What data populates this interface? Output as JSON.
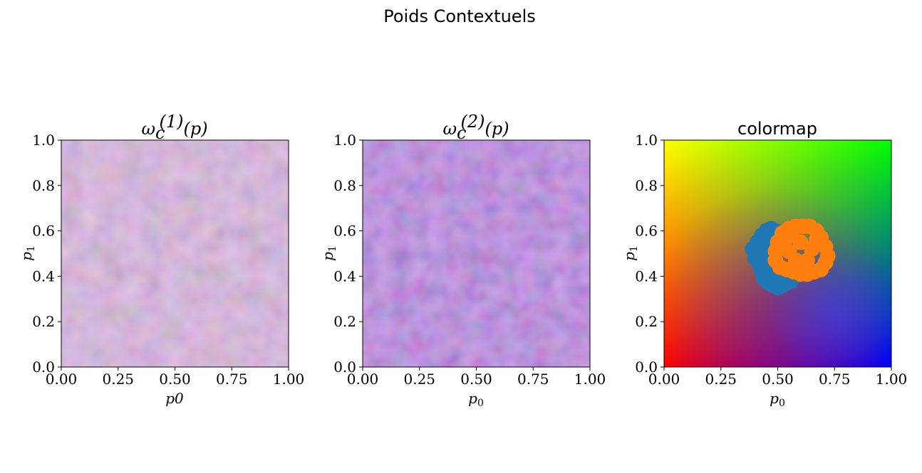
{
  "figure": {
    "suptitle": "Poids Contextuels"
  },
  "chart_data": [
    {
      "type": "heatmap",
      "title": "ω_c^(1)(p)",
      "title_parts": {
        "base": "ω",
        "sub": "c",
        "sup": "(1)",
        "arg": "(p)"
      },
      "xlabel": "p0",
      "ylabel": "p1",
      "xlim": [
        0.0,
        1.0
      ],
      "ylim": [
        0.0,
        1.0
      ],
      "xticks": [
        "0.00",
        "0.25",
        "0.50",
        "0.75",
        "1.00"
      ],
      "yticks": [
        "0.0",
        "0.2",
        "0.4",
        "0.6",
        "0.8",
        "1.0"
      ],
      "grid": false,
      "description_tint": [
        "#c4a8d8",
        "#d9a4b8",
        "#e8c9a0",
        "#b8d4b0",
        "#a8a8e0"
      ]
    },
    {
      "type": "heatmap",
      "title": "ω_c^(2)(p)",
      "title_parts": {
        "base": "ω",
        "sub": "c",
        "sup": "(2)",
        "arg": "(p)"
      },
      "xlabel": "p0",
      "ylabel": "p1",
      "xlim": [
        0.0,
        1.0
      ],
      "ylim": [
        0.0,
        1.0
      ],
      "xticks": [
        "0.00",
        "0.25",
        "0.50",
        "0.75",
        "1.00"
      ],
      "yticks": [
        "0.0",
        "0.2",
        "0.4",
        "0.6",
        "0.8",
        "1.0"
      ],
      "grid": false,
      "description_tint": [
        "#9a7ccf",
        "#b57ab8",
        "#d58aa0",
        "#c9a8dc",
        "#8c80d6"
      ]
    },
    {
      "type": "scatter",
      "title": "colormap",
      "xlabel": "p0",
      "ylabel": "p1",
      "xlim": [
        0.0,
        1.0
      ],
      "ylim": [
        0.0,
        1.0
      ],
      "xticks": [
        "0.00",
        "0.25",
        "0.50",
        "0.75",
        "1.00"
      ],
      "yticks": [
        "0.0",
        "0.2",
        "0.4",
        "0.6",
        "0.8",
        "1.0"
      ],
      "grid": false,
      "background_corners": {
        "bottom_left": "#ff0000",
        "top_left": "#ffff00",
        "top_right": "#00ff00",
        "bottom_right": "#0000ff",
        "center_low": "#7a1aa8"
      },
      "series": [
        {
          "color": "#1f77b4",
          "points": [
            [
              0.39,
              0.52
            ],
            [
              0.41,
              0.55
            ],
            [
              0.43,
              0.58
            ],
            [
              0.45,
              0.6
            ],
            [
              0.47,
              0.61
            ],
            [
              0.49,
              0.6
            ],
            [
              0.5,
              0.58
            ],
            [
              0.4,
              0.48
            ],
            [
              0.42,
              0.45
            ],
            [
              0.43,
              0.42
            ],
            [
              0.44,
              0.39
            ],
            [
              0.46,
              0.37
            ],
            [
              0.48,
              0.36
            ],
            [
              0.5,
              0.35
            ],
            [
              0.52,
              0.36
            ],
            [
              0.54,
              0.37
            ],
            [
              0.56,
              0.38
            ],
            [
              0.57,
              0.4
            ],
            [
              0.44,
              0.5
            ],
            [
              0.46,
              0.54
            ],
            [
              0.46,
              0.46
            ],
            [
              0.48,
              0.42
            ],
            [
              0.51,
              0.4
            ],
            [
              0.42,
              0.5
            ],
            [
              0.45,
              0.57
            ],
            [
              0.43,
              0.54
            ],
            [
              0.47,
              0.39
            ],
            [
              0.53,
              0.39
            ]
          ]
        },
        {
          "color": "#ff7f0e",
          "points": [
            [
              0.5,
              0.55
            ],
            [
              0.52,
              0.59
            ],
            [
              0.55,
              0.61
            ],
            [
              0.58,
              0.62
            ],
            [
              0.61,
              0.62
            ],
            [
              0.64,
              0.62
            ],
            [
              0.67,
              0.6
            ],
            [
              0.69,
              0.57
            ],
            [
              0.71,
              0.53
            ],
            [
              0.72,
              0.49
            ],
            [
              0.71,
              0.46
            ],
            [
              0.69,
              0.43
            ],
            [
              0.66,
              0.42
            ],
            [
              0.63,
              0.41
            ],
            [
              0.6,
              0.41
            ],
            [
              0.57,
              0.42
            ],
            [
              0.54,
              0.43
            ],
            [
              0.51,
              0.44
            ],
            [
              0.49,
              0.47
            ],
            [
              0.49,
              0.51
            ],
            [
              0.55,
              0.51
            ],
            [
              0.6,
              0.55
            ],
            [
              0.65,
              0.52
            ],
            [
              0.58,
              0.47
            ],
            [
              0.63,
              0.47
            ],
            [
              0.67,
              0.56
            ],
            [
              0.53,
              0.56
            ],
            [
              0.56,
              0.58
            ]
          ]
        }
      ]
    }
  ]
}
